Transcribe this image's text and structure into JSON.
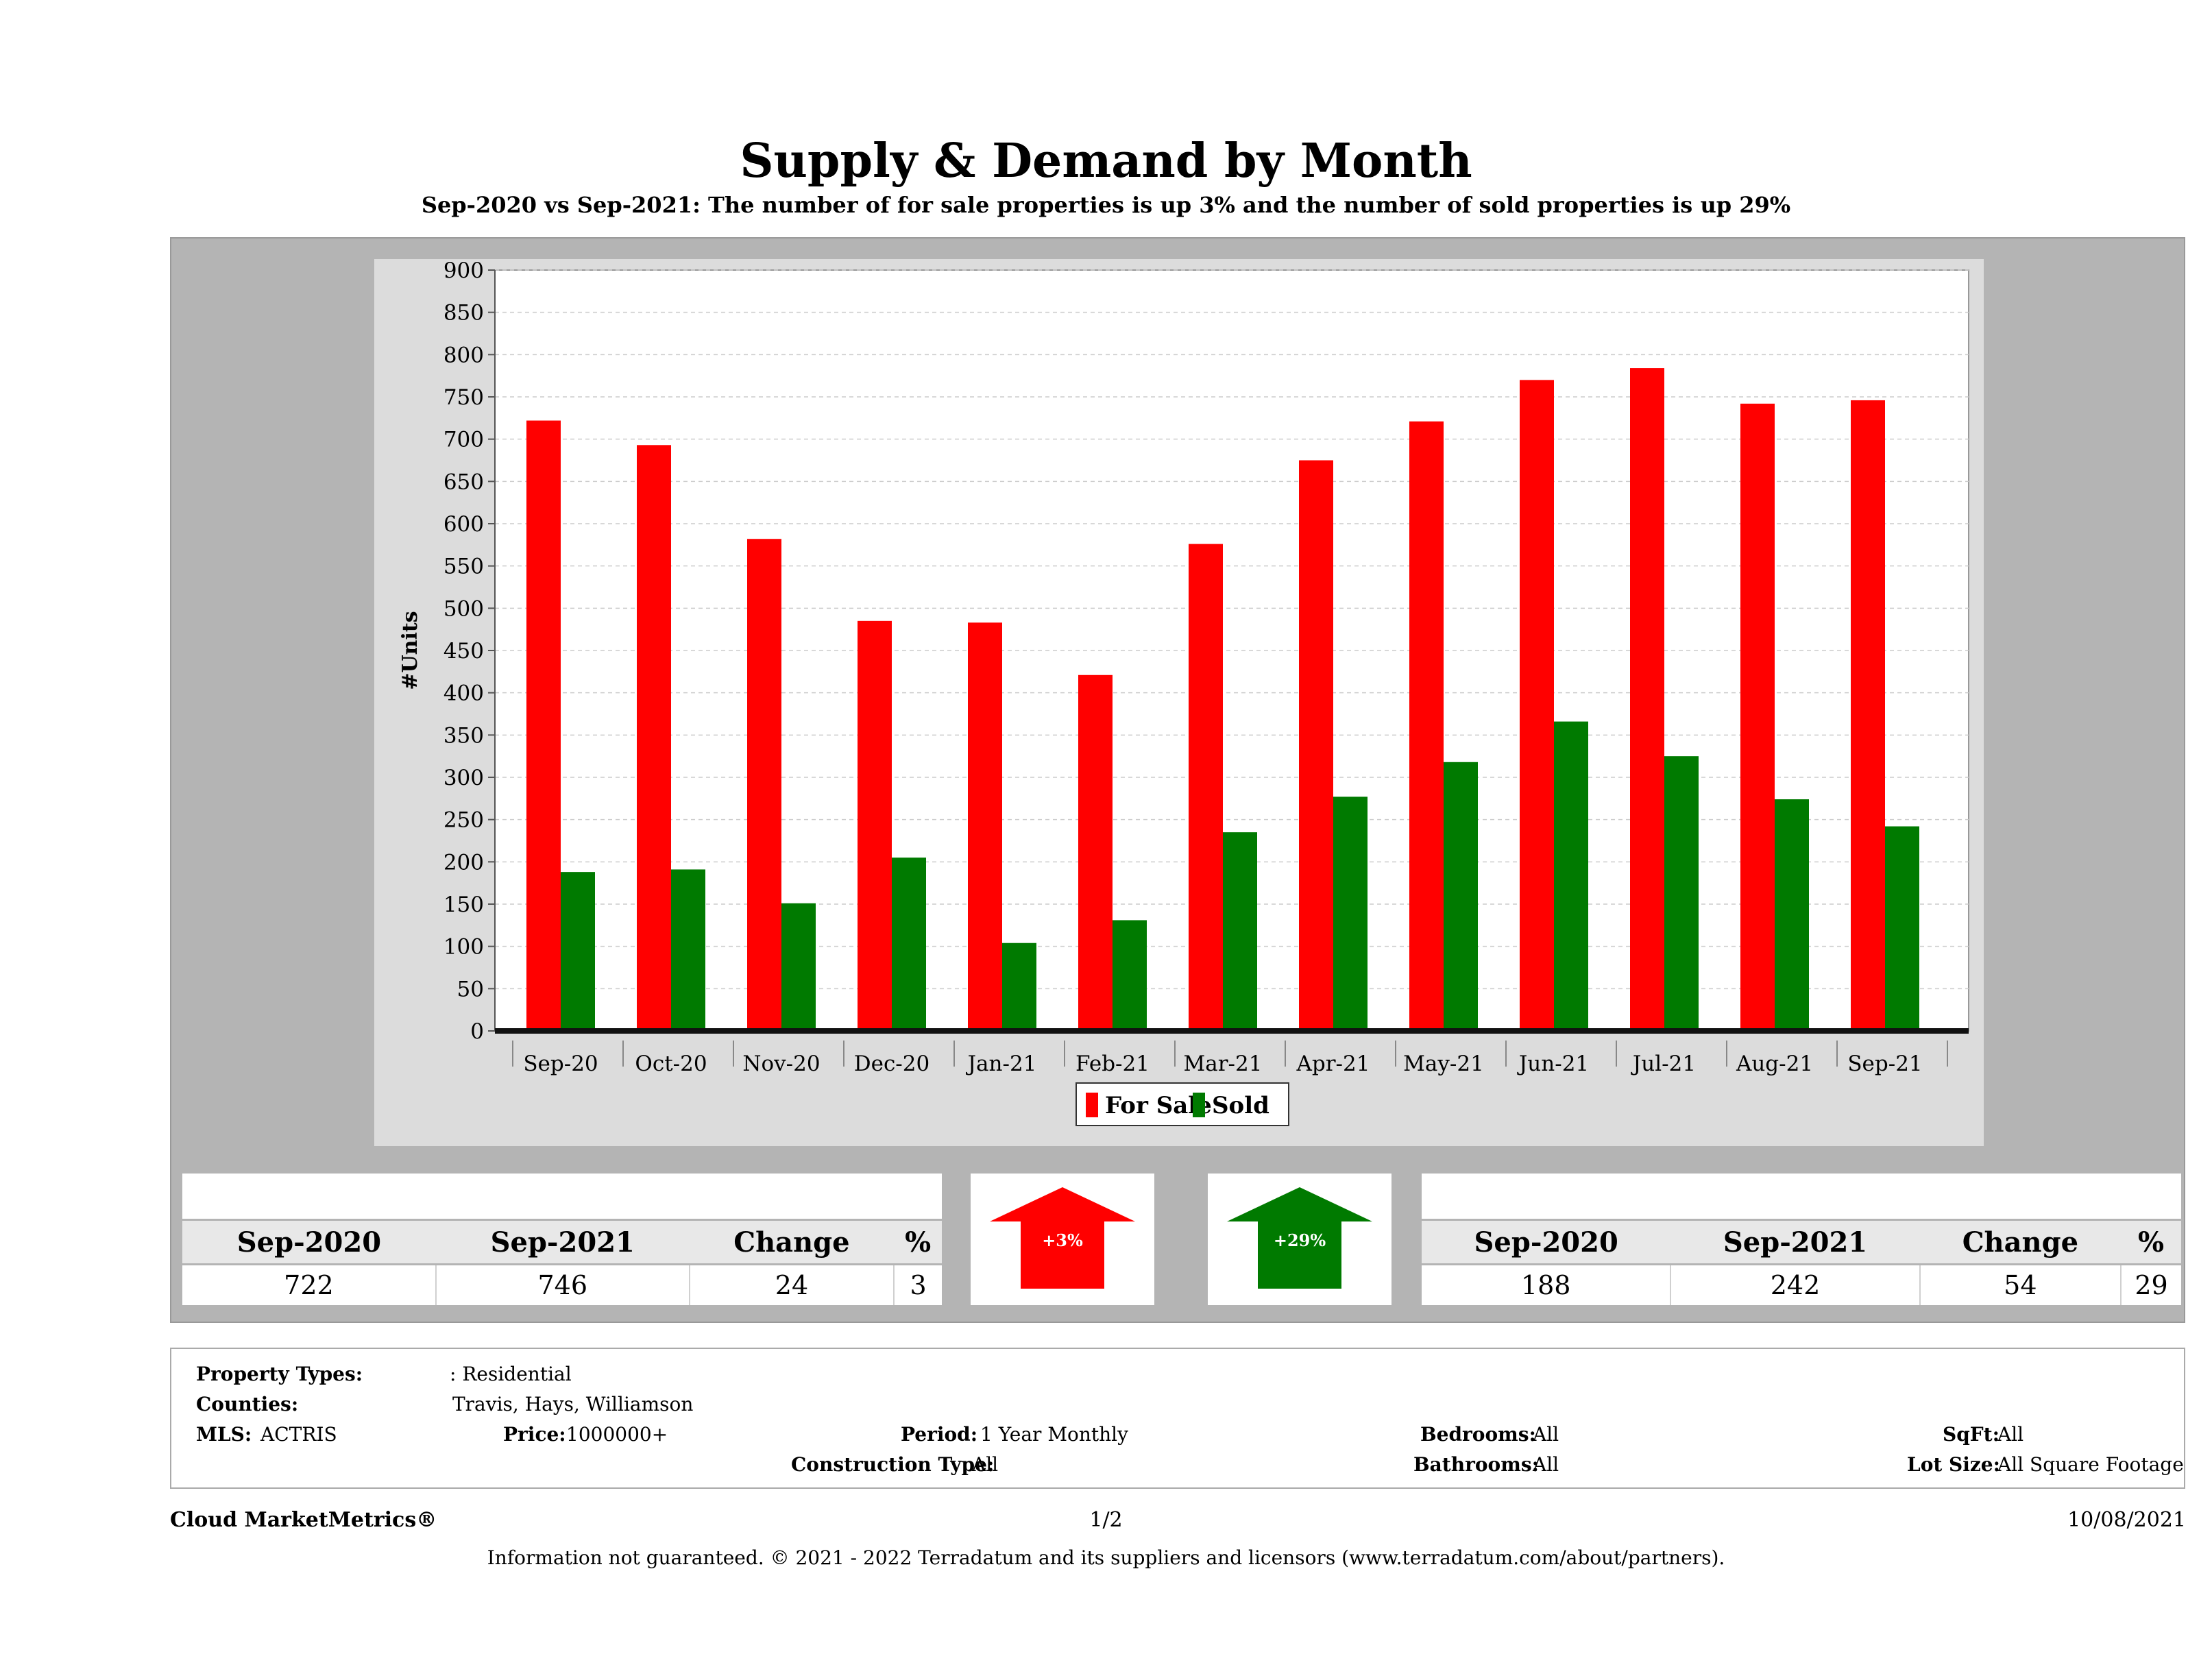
{
  "header": {
    "title": "Supply & Demand by Month",
    "subtitle": "Sep-2020 vs Sep-2021: The number of for sale properties is up 3% and the number of sold properties is up 29%"
  },
  "colors": {
    "for_sale": "#ff0000",
    "sold": "#007a00",
    "panel": "#b4b4b4"
  },
  "chart_data": {
    "type": "bar",
    "title": "Supply & Demand by Month",
    "xlabel": "",
    "ylabel": "#Units",
    "ylim": [
      0,
      900
    ],
    "yticks": [
      0,
      50,
      100,
      150,
      200,
      250,
      300,
      350,
      400,
      450,
      500,
      550,
      600,
      650,
      700,
      750,
      800,
      850,
      900
    ],
    "grid": true,
    "legend": "bottom-center",
    "categories": [
      "Sep-20",
      "Oct-20",
      "Nov-20",
      "Dec-20",
      "Jan-21",
      "Feb-21",
      "Mar-21",
      "Apr-21",
      "May-21",
      "Jun-21",
      "Jul-21",
      "Aug-21",
      "Sep-21"
    ],
    "series": [
      {
        "name": "For Sale",
        "color": "#ff0000",
        "values": [
          722,
          693,
          582,
          485,
          483,
          421,
          576,
          675,
          721,
          770,
          784,
          742,
          746
        ]
      },
      {
        "name": "Sold",
        "color": "#007a00",
        "values": [
          188,
          191,
          151,
          205,
          104,
          131,
          235,
          277,
          318,
          366,
          325,
          274,
          242
        ]
      }
    ]
  },
  "for_sale_stats": {
    "headers": [
      "Sep-2020",
      "Sep-2021",
      "Change",
      "%"
    ],
    "values": [
      "722",
      "746",
      "24",
      "3"
    ],
    "badge": "+3%"
  },
  "sold_stats": {
    "headers": [
      "Sep-2020",
      "Sep-2021",
      "Change",
      "%"
    ],
    "values": [
      "188",
      "242",
      "54",
      "29"
    ],
    "badge": "+29%"
  },
  "criteria": {
    "property_types_label": "Property Types:",
    "property_types_value": ": Residential",
    "counties_label": "Counties:",
    "counties_value": "Travis, Hays, Williamson",
    "mls_label": "MLS:",
    "mls_value": "ACTRIS",
    "price_label": "Price:",
    "price_value": "1000000+",
    "period_label": "Period:",
    "period_value": "1 Year Monthly",
    "construction_label": "Construction Type:",
    "construction_value": "All",
    "bedrooms_label": "Bedrooms:",
    "bedrooms_value": "All",
    "bathrooms_label": "Bathrooms:",
    "bathrooms_value": "All",
    "sqft_label": "SqFt:",
    "sqft_value": "All",
    "lotsize_label": "Lot Size:",
    "lotsize_value": "All Square Footage"
  },
  "footer": {
    "brand": "Cloud MarketMetrics®",
    "page": "1/2",
    "date": "10/08/2021",
    "disclaimer": "Information not guaranteed. © 2021 - 2022 Terradatum and its suppliers and licensors (www.terradatum.com/about/partners)."
  }
}
